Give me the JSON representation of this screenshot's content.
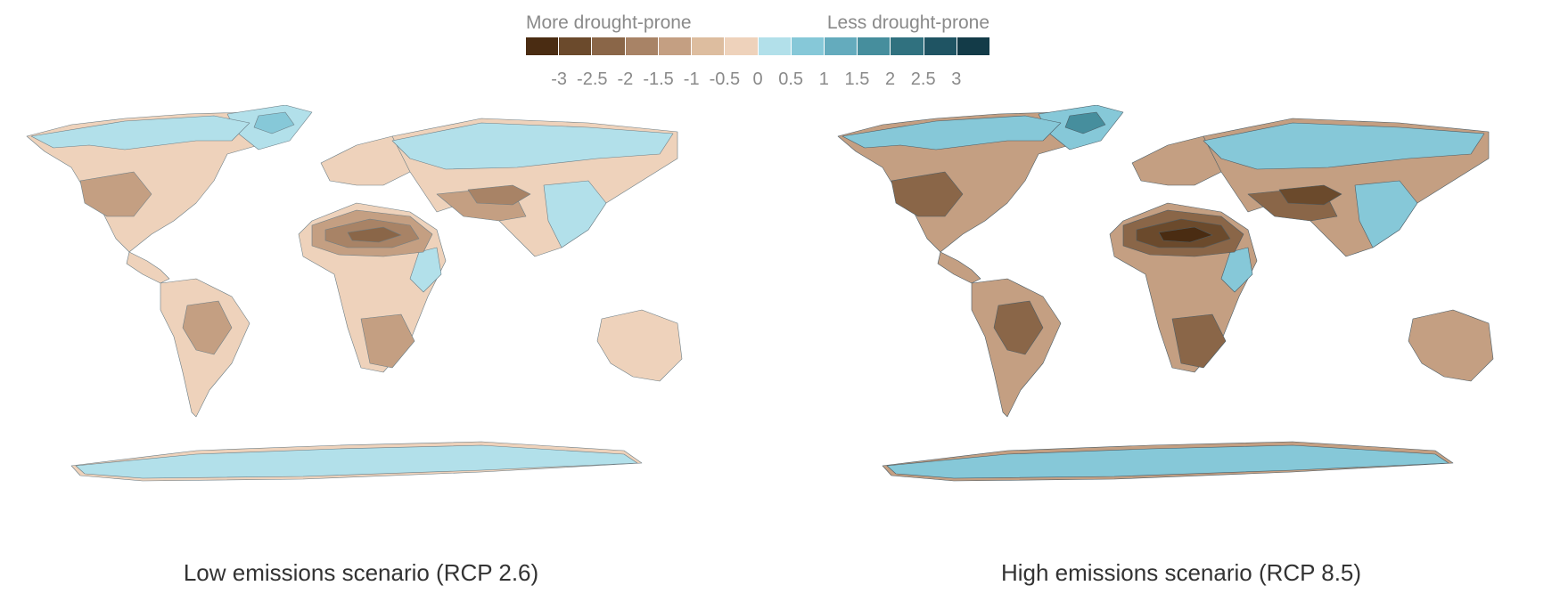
{
  "legend": {
    "left_label": "More drought-prone",
    "right_label": "Less drought-prone",
    "colors": [
      "#4a2c12",
      "#6b4a2c",
      "#8a6648",
      "#a88366",
      "#c49f82",
      "#ddbd9f",
      "#eed2bb",
      "#b2e0ea",
      "#86c8d8",
      "#64abbd",
      "#468e9d",
      "#30717f",
      "#1f5463",
      "#133b48"
    ],
    "ticks": [
      "-3",
      "-2.5",
      "-2",
      "-1.5",
      "-1",
      "-0.5",
      "0",
      "0.5",
      "1",
      "1.5",
      "2",
      "2.5",
      "3"
    ]
  },
  "maps": [
    {
      "caption": "Low emissions scenario (RCP 2.6)",
      "palette": {
        "base_land": "#eed2bb",
        "wet": "#b2e0ea",
        "wetter": "#86c8d8",
        "dry": "#c49f82",
        "drier": "#a88366",
        "driest": "#8a6648",
        "coast": "#6c7e86"
      }
    },
    {
      "caption": "High emissions scenario (RCP 8.5)",
      "palette": {
        "base_land": "#c49f82",
        "wet": "#86c8d8",
        "wetter": "#468e9d",
        "dry": "#8a6648",
        "drier": "#6b4a2c",
        "driest": "#4a2c12",
        "coast": "#4b5d66"
      }
    }
  ]
}
